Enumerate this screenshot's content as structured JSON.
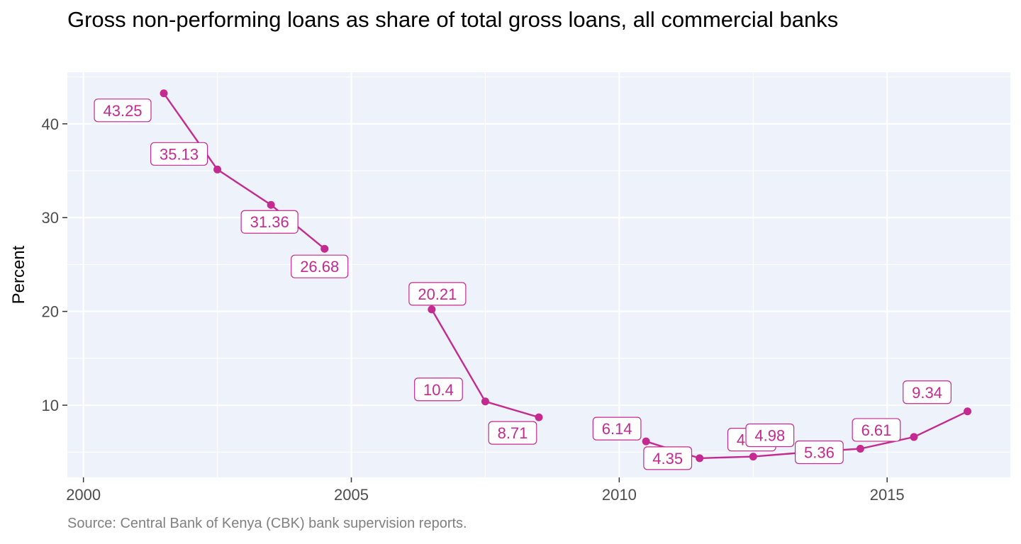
{
  "chart_data": {
    "type": "line",
    "title": "Gross non-performing loans as share of total gross loans, all commercial banks",
    "ylabel": "Percent",
    "xlabel": "",
    "caption": "Source: Central Bank of Kenya (CBK) bank supervision reports.",
    "xlim": [
      1999.7,
      2017.3
    ],
    "ylim": [
      2.3,
      45.5
    ],
    "x_ticks": [
      {
        "value": 2000,
        "label": "2000"
      },
      {
        "value": 2005,
        "label": "2005"
      },
      {
        "value": 2010,
        "label": "2010"
      },
      {
        "value": 2015,
        "label": "2015"
      }
    ],
    "y_ticks": [
      {
        "value": 10,
        "label": "10"
      },
      {
        "value": 20,
        "label": "20"
      },
      {
        "value": 30,
        "label": "30"
      },
      {
        "value": 40,
        "label": "40"
      }
    ],
    "grid": true,
    "color": "#c42a8f",
    "panel_background": "#eef3fb",
    "series": [
      {
        "segments": [
          [
            {
              "x": 2001.5,
              "y": 43.25,
              "label": "43.25"
            },
            {
              "x": 2002.5,
              "y": 35.13,
              "label": "35.13"
            },
            {
              "x": 2003.5,
              "y": 31.36,
              "label": "31.36"
            },
            {
              "x": 2004.5,
              "y": 26.68,
              "label": "26.68"
            }
          ],
          [
            {
              "x": 2006.5,
              "y": 20.21,
              "label": "20.21"
            },
            {
              "x": 2007.5,
              "y": 10.4,
              "label": "10.4"
            },
            {
              "x": 2008.5,
              "y": 8.71,
              "label": "8.71"
            }
          ],
          [
            {
              "x": 2010.5,
              "y": 6.14,
              "label": "6.14"
            },
            {
              "x": 2011.5,
              "y": 4.35,
              "label": "4.35"
            },
            {
              "x": 2012.5,
              "y": 4.52,
              "label": "4.52"
            },
            {
              "x": 2013.5,
              "y": 4.98,
              "label": "4.98"
            },
            {
              "x": 2014.5,
              "y": 5.36,
              "label": "5.36"
            },
            {
              "x": 2015.5,
              "y": 6.61,
              "label": "6.61"
            },
            {
              "x": 2016.5,
              "y": 9.34,
              "label": "9.34"
            }
          ]
        ]
      }
    ]
  }
}
